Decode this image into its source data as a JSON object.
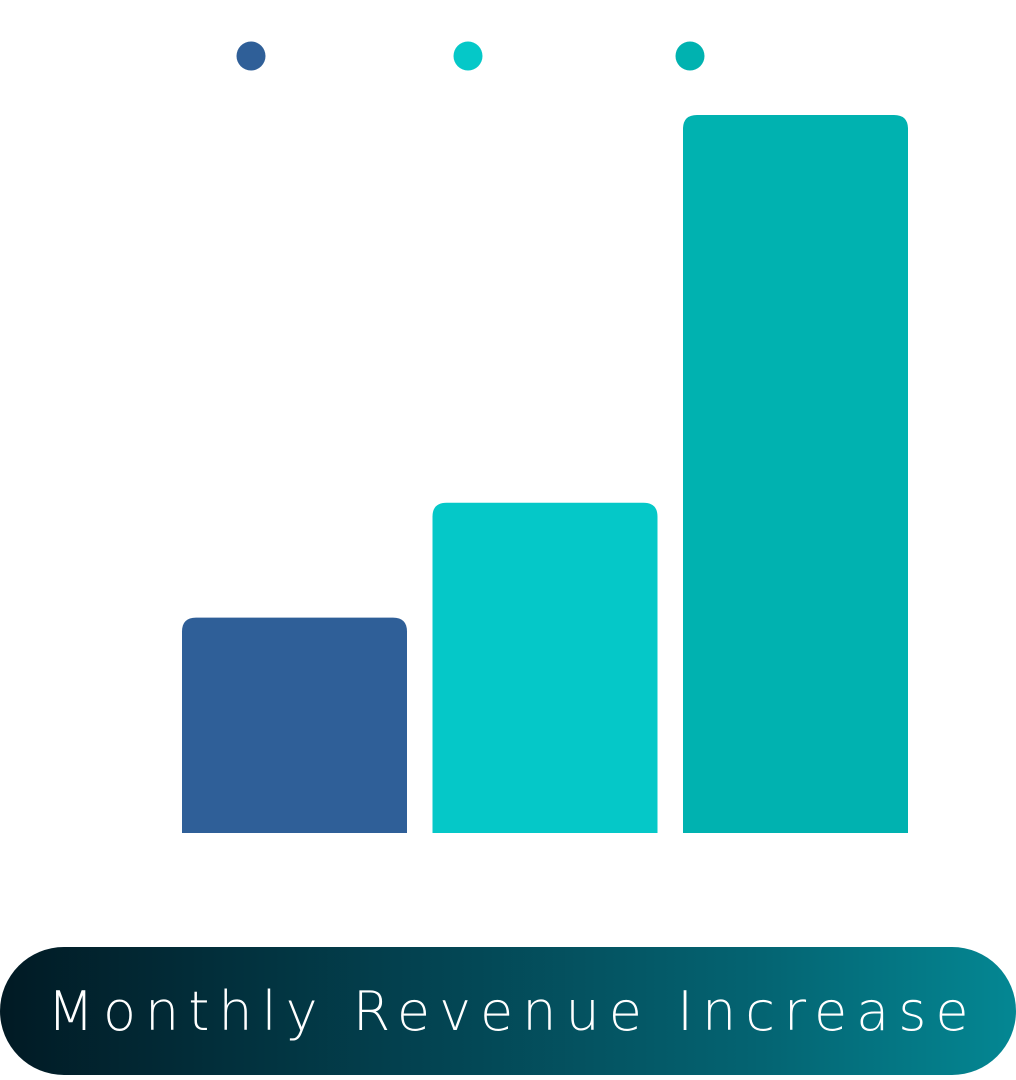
{
  "chart_data": {
    "type": "bar",
    "title": "Monthly Revenue Increase",
    "categories": [
      "",
      "",
      ""
    ],
    "values": [
      3,
      4.6,
      10
    ],
    "ylim": [
      0,
      10
    ],
    "colors": [
      "#2f5f98",
      "#05c8c8",
      "#00b2b0"
    ],
    "legend": {
      "placement": "top",
      "markers": [
        "#2f5f98",
        "#05c8c8",
        "#00b2b0"
      ]
    },
    "grid": false,
    "xlabel": "",
    "ylabel": ""
  }
}
